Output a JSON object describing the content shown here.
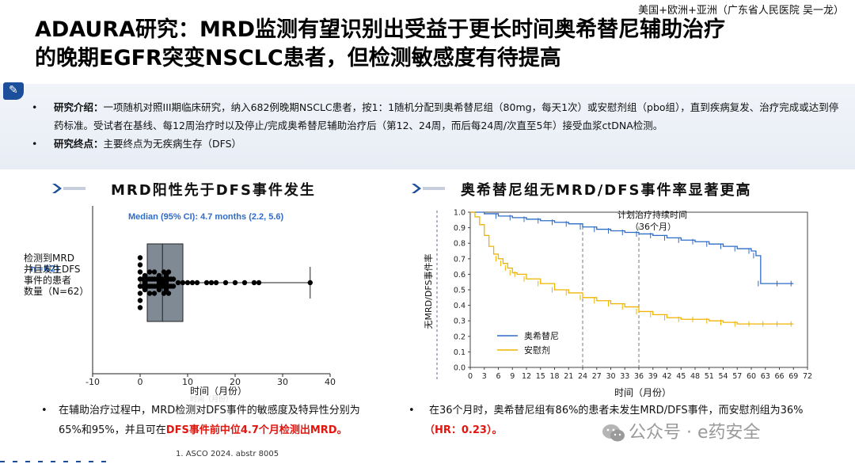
{
  "header": {
    "tag": "美国+欧洲+亚洲（广东省人民医院 吴一龙）",
    "title_line1": "ADAURA研究：MRD监测有望识别出受益于更长时间奥希替尼辅助治疗",
    "title_line2": "的晚期EGFR突变NSCLC患者，但检测敏感度有待提高"
  },
  "intro": {
    "b1_label": "研究介绍：",
    "b1_text": "一项随机对照III期临床研究，纳入682例晚期NSCLC患者，按1：1随机分配到奥希替尼组（80mg，每天1次）或安慰剂组（pbo组），直到疾病复发、治疗完成或达到停药标准。受试者在基线、每12周治疗时以及停止/完成奥希替尼辅助治疗后（第12、24周，而后每24周/次直至5年）接受血浆ctDNA检测。",
    "b2_label": "研究终点：",
    "b2_text": "主要终点为无疾病生存（DFS）"
  },
  "left_section": {
    "title": "MRD阳性先于DFS事件发生",
    "footnote_line1": "在辅助治疗过程中，MRD检测对DFS事件的敏感度及特异性分别为",
    "footnote_line2a": "65%和95%，并且可在",
    "footnote_line2b": "DFS事件前中位4.7个月检测出MRD。"
  },
  "right_section": {
    "title": "奥希替尼组无MRD/DFS事件率显著更高",
    "footnote_line1": "在36个月时，奥希替尼组有86%的患者未发生MRD/DFS事件，而安慰剂组为36%",
    "footnote_line2": "（HR：0.23）。"
  },
  "reference": "1.   ASCO 2024. abstr 8005",
  "watermark": "公众号 · e药安全",
  "colors": {
    "accent": "#1b4f9c",
    "osimertinib": "#2e6cc7",
    "placebo": "#f0b400",
    "red": "#e0160f"
  },
  "chart_data": [
    {
      "type": "box-swarm",
      "title": "MRD阳性先于DFS事件发生",
      "annotation": "Median (95% CI): 4.7 months (2.2, 5.6)",
      "ylabel_lines": [
        "检测到MRD",
        "并且发生DFS",
        "事件的患者",
        "数量（N=62）"
      ],
      "ylabel_ghost": "n=62)",
      "xlabel": "时间（月份）",
      "xlabel_ghost": "时间（月份）",
      "xticks": [
        -10,
        0,
        10,
        20,
        30,
        40
      ],
      "xlim": [
        -10,
        40
      ],
      "box": {
        "q1": 1.5,
        "median": 4.7,
        "q3": 9.0,
        "whisker_low": 0,
        "whisker_high": 35.8
      },
      "points": [
        0,
        0,
        0,
        0,
        0,
        0,
        0,
        0,
        0.5,
        0.5,
        1,
        1,
        1,
        1.5,
        1.5,
        2,
        2,
        2,
        2,
        2.5,
        2.5,
        3,
        3,
        3,
        3,
        3.5,
        3.5,
        4,
        4,
        4,
        4.5,
        4.5,
        4.7,
        5,
        5,
        5,
        5,
        5.5,
        5.5,
        5.5,
        6,
        6,
        6,
        6,
        6.5,
        6.5,
        7,
        7,
        8,
        9,
        10,
        11,
        12,
        14,
        15,
        16,
        18,
        20,
        22,
        24,
        25,
        35.8
      ]
    },
    {
      "type": "line",
      "title": "奥希替尼组无MRD/DFS事件率显著更高",
      "ylabel": "无MRD/DFS事件率",
      "xlabel": "时间（月份）",
      "xticks": [
        0,
        3,
        6,
        9,
        12,
        15,
        18,
        21,
        24,
        27,
        30,
        33,
        36,
        39,
        42,
        45,
        48,
        51,
        54,
        57,
        60,
        63,
        66,
        69,
        72
      ],
      "yticks": [
        0,
        0.1,
        0.2,
        0.3,
        0.4,
        0.5,
        0.6,
        0.7,
        0.8,
        0.9,
        1.0
      ],
      "xlim": [
        0,
        72
      ],
      "ylim": [
        0,
        1.0
      ],
      "reference_lines": [
        24,
        36
      ],
      "annotation_lines": [
        "计划治疗持续时间",
        "（36个月）"
      ],
      "legend": [
        "奥希替尼",
        "安慰剂"
      ],
      "series": [
        {
          "name": "奥希替尼",
          "x": [
            0,
            3,
            6,
            9,
            12,
            15,
            18,
            21,
            24,
            27,
            30,
            33,
            36,
            39,
            42,
            45,
            48,
            51,
            54,
            57,
            60,
            61,
            62,
            66,
            69
          ],
          "y": [
            1.0,
            0.99,
            0.975,
            0.965,
            0.955,
            0.945,
            0.935,
            0.925,
            0.905,
            0.89,
            0.88,
            0.87,
            0.86,
            0.85,
            0.835,
            0.82,
            0.81,
            0.795,
            0.78,
            0.765,
            0.75,
            0.72,
            0.54,
            0.54,
            0.54
          ]
        },
        {
          "name": "安慰剂",
          "x": [
            0,
            1,
            2,
            3,
            4,
            5,
            6,
            7,
            8,
            9,
            10,
            12,
            15,
            18,
            21,
            24,
            27,
            30,
            33,
            36,
            39,
            42,
            45,
            48,
            51,
            54,
            57,
            60,
            63,
            66,
            69
          ],
          "y": [
            1.0,
            0.97,
            0.92,
            0.85,
            0.78,
            0.73,
            0.7,
            0.67,
            0.64,
            0.61,
            0.6,
            0.57,
            0.54,
            0.5,
            0.48,
            0.45,
            0.43,
            0.41,
            0.39,
            0.36,
            0.34,
            0.32,
            0.31,
            0.31,
            0.3,
            0.29,
            0.28,
            0.28,
            0.28,
            0.28,
            0.28
          ]
        }
      ]
    }
  ]
}
